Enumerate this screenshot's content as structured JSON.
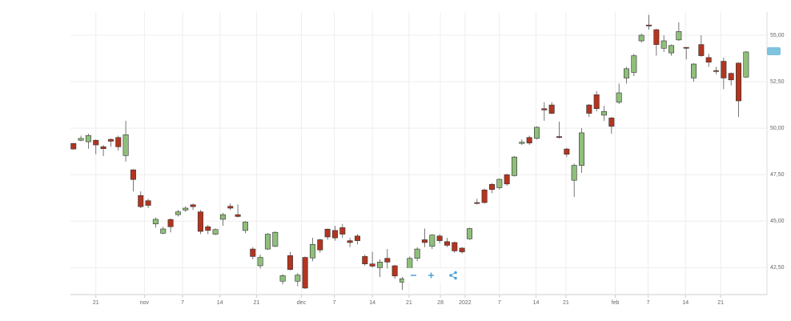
{
  "chart_data": {
    "type": "candlestick",
    "x": [
      0,
      1,
      2,
      3,
      4,
      5,
      6,
      7,
      8,
      9,
      10,
      11,
      12,
      13,
      14,
      15,
      16,
      17,
      18,
      19,
      20,
      21,
      22,
      23,
      24,
      25,
      26,
      27,
      28,
      29,
      30,
      31,
      32,
      33,
      34,
      35,
      36,
      37,
      38,
      39,
      40,
      41,
      42,
      43,
      44,
      45,
      46,
      47,
      48,
      49,
      50,
      51,
      52,
      53,
      54,
      55,
      56,
      57,
      58,
      59,
      60,
      61,
      62,
      63,
      64,
      65,
      66,
      67,
      68,
      69,
      70,
      71,
      72,
      73,
      74,
      75,
      76,
      77,
      78,
      79,
      80,
      81,
      82,
      83,
      84,
      85,
      86,
      87,
      88,
      89,
      90
    ],
    "open": [
      49.18,
      49.35,
      49.27,
      49.35,
      49.0,
      49.4,
      49.5,
      48.53,
      47.76,
      46.38,
      46.1,
      44.85,
      44.35,
      45.09,
      45.35,
      45.6,
      45.88,
      45.5,
      44.7,
      44.3,
      45.1,
      45.8,
      45.35,
      44.5,
      43.5,
      42.6,
      43.5,
      43.65,
      41.77,
      43.15,
      41.77,
      43.05,
      43.02,
      44.0,
      44.57,
      44.5,
      44.65,
      43.95,
      44.2,
      43.1,
      42.7,
      42.5,
      43.0,
      42.6,
      41.72,
      42.45,
      43.0,
      44.0,
      43.65,
      44.2,
      43.9,
      43.85,
      43.55,
      44.05,
      46.0,
      46.68,
      46.98,
      46.8,
      47.5,
      47.45,
      49.18,
      49.5,
      49.45,
      51.05,
      51.25,
      49.55,
      48.88,
      47.2,
      48.0,
      51.25,
      51.8,
      50.7,
      50.55,
      51.4,
      52.7,
      53.0,
      54.7,
      55.55,
      55.3,
      54.3,
      54.05,
      54.75,
      54.35,
      52.7,
      54.5,
      53.8,
      53.1,
      53.6,
      52.95,
      53.5,
      52.75
    ],
    "high": [
      49.2,
      49.6,
      49.7,
      49.4,
      49.1,
      49.45,
      49.6,
      50.4,
      47.8,
      46.6,
      46.2,
      45.2,
      44.7,
      45.15,
      45.6,
      45.8,
      45.95,
      45.6,
      44.8,
      44.6,
      45.45,
      45.95,
      45.9,
      45.0,
      43.6,
      43.2,
      44.35,
      44.45,
      42.15,
      43.35,
      42.2,
      43.1,
      44.1,
      44.05,
      44.6,
      44.75,
      44.85,
      44.1,
      44.3,
      43.2,
      43.35,
      42.95,
      43.5,
      42.65,
      42.0,
      43.1,
      43.6,
      44.6,
      44.3,
      44.3,
      44.1,
      43.9,
      43.6,
      44.65,
      46.2,
      46.75,
      47.05,
      47.3,
      47.55,
      48.5,
      49.4,
      49.6,
      50.1,
      51.4,
      51.4,
      50.35,
      48.95,
      48.1,
      50.0,
      51.3,
      52.0,
      51.2,
      50.6,
      52.4,
      53.3,
      54.0,
      55.1,
      56.1,
      55.35,
      55.0,
      54.5,
      55.7,
      54.35,
      53.5,
      55.0,
      54.0,
      53.3,
      53.8,
      53.0,
      53.55,
      54.15
    ],
    "low": [
      48.85,
      49.3,
      48.9,
      48.6,
      48.5,
      49.0,
      48.8,
      48.2,
      46.6,
      45.7,
      45.7,
      44.65,
      44.3,
      44.4,
      45.25,
      45.5,
      45.6,
      44.3,
      44.3,
      44.25,
      44.75,
      45.6,
      45.2,
      44.35,
      42.95,
      42.45,
      43.45,
      43.6,
      41.6,
      42.35,
      41.5,
      41.35,
      42.85,
      43.3,
      44.0,
      43.95,
      44.1,
      43.6,
      43.75,
      42.6,
      42.5,
      42.0,
      42.45,
      41.9,
      41.3,
      42.3,
      42.85,
      43.6,
      43.5,
      43.8,
      43.6,
      43.3,
      43.25,
      44.0,
      45.9,
      45.95,
      46.5,
      46.7,
      46.9,
      47.4,
      49.1,
      49.1,
      49.4,
      50.4,
      50.75,
      49.45,
      48.45,
      46.3,
      47.6,
      50.6,
      50.9,
      50.4,
      49.7,
      51.3,
      52.4,
      52.8,
      54.6,
      55.3,
      53.9,
      54.1,
      53.9,
      54.7,
      53.7,
      52.5,
      53.85,
      53.3,
      52.9,
      52.1,
      52.3,
      50.6,
      52.7
    ],
    "close": [
      48.88,
      49.45,
      49.61,
      49.1,
      48.9,
      49.3,
      49.0,
      49.65,
      47.24,
      45.78,
      45.85,
      45.1,
      44.58,
      44.7,
      45.5,
      45.7,
      45.78,
      44.45,
      44.5,
      44.55,
      45.35,
      45.7,
      45.25,
      44.95,
      43.1,
      43.05,
      44.3,
      44.4,
      42.07,
      42.4,
      42.1,
      41.4,
      43.75,
      43.45,
      44.15,
      44.1,
      44.3,
      43.85,
      43.95,
      42.7,
      42.58,
      42.8,
      42.8,
      42.05,
      41.9,
      43.0,
      43.5,
      43.85,
      44.25,
      43.95,
      43.7,
      43.4,
      43.35,
      44.6,
      45.95,
      46.0,
      46.7,
      47.25,
      47.0,
      48.45,
      49.25,
      49.2,
      50.05,
      50.98,
      50.8,
      49.5,
      48.6,
      48.0,
      49.75,
      50.8,
      51.05,
      50.9,
      50.1,
      51.9,
      53.2,
      53.9,
      55.0,
      55.5,
      54.5,
      54.7,
      54.45,
      55.2,
      54.3,
      53.45,
      53.9,
      53.55,
      53.05,
      52.7,
      52.6,
      51.47,
      54.1
    ],
    "up_color": "#8fbf7a",
    "down_color": "#b23520",
    "xlim": [
      -0.4,
      92.8
    ],
    "xticks": [
      {
        "value": 3,
        "label": "21"
      },
      {
        "value": 9.5,
        "label": "nov"
      },
      {
        "value": 14.6,
        "label": "7"
      },
      {
        "value": 19.6,
        "label": "14"
      },
      {
        "value": 24.5,
        "label": "21"
      },
      {
        "value": 30.5,
        "label": "dec"
      },
      {
        "value": 34.9,
        "label": "7"
      },
      {
        "value": 40,
        "label": "14"
      },
      {
        "value": 44.9,
        "label": "21"
      },
      {
        "value": 49.1,
        "label": "28"
      },
      {
        "value": 52.4,
        "label": "2022"
      },
      {
        "value": 57,
        "label": "7"
      },
      {
        "value": 61.9,
        "label": "14"
      },
      {
        "value": 65.9,
        "label": "21"
      },
      {
        "value": 72.5,
        "label": "feb"
      },
      {
        "value": 76.9,
        "label": "7"
      },
      {
        "value": 81.9,
        "label": "14"
      },
      {
        "value": 86.6,
        "label": "21"
      }
    ],
    "ylim": [
      41.05,
      56.25
    ],
    "yticks": [
      {
        "value": 42.5,
        "label": "42,50"
      },
      {
        "value": 45,
        "label": "45,00"
      },
      {
        "value": 47.5,
        "label": "47,50"
      },
      {
        "value": 50,
        "label": "50,00"
      },
      {
        "value": 52.5,
        "label": "52,50"
      },
      {
        "value": 55,
        "label": "55,00"
      }
    ],
    "grid": true
  }
}
